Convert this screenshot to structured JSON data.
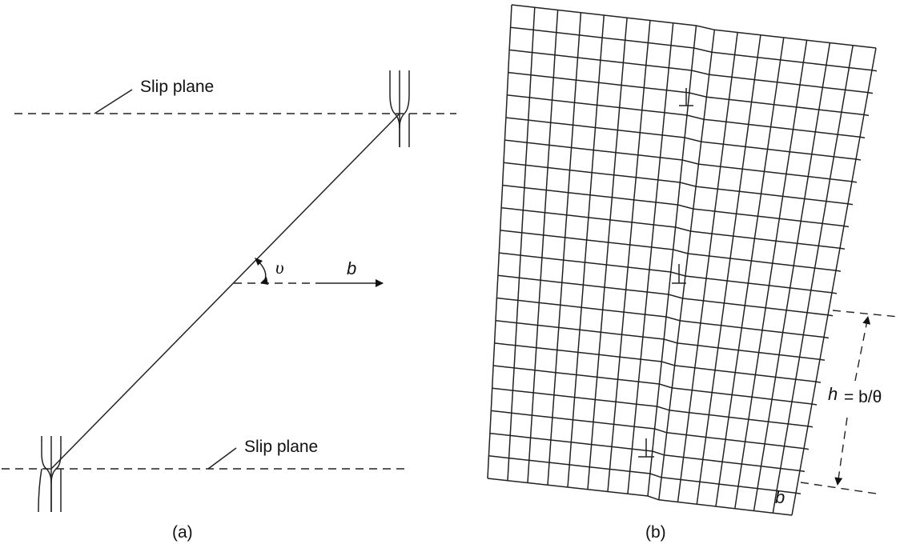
{
  "panel_a": {
    "caption": "(a)",
    "top_slip_plane_label": "Slip plane",
    "bottom_slip_plane_label": "Slip plane",
    "angle_symbol": "υ",
    "burgers_vector_label": "b"
  },
  "panel_b": {
    "caption": "(b)",
    "spacing_label_h": "h",
    "spacing_label_eq": "= b/θ",
    "cell_label": "b"
  }
}
